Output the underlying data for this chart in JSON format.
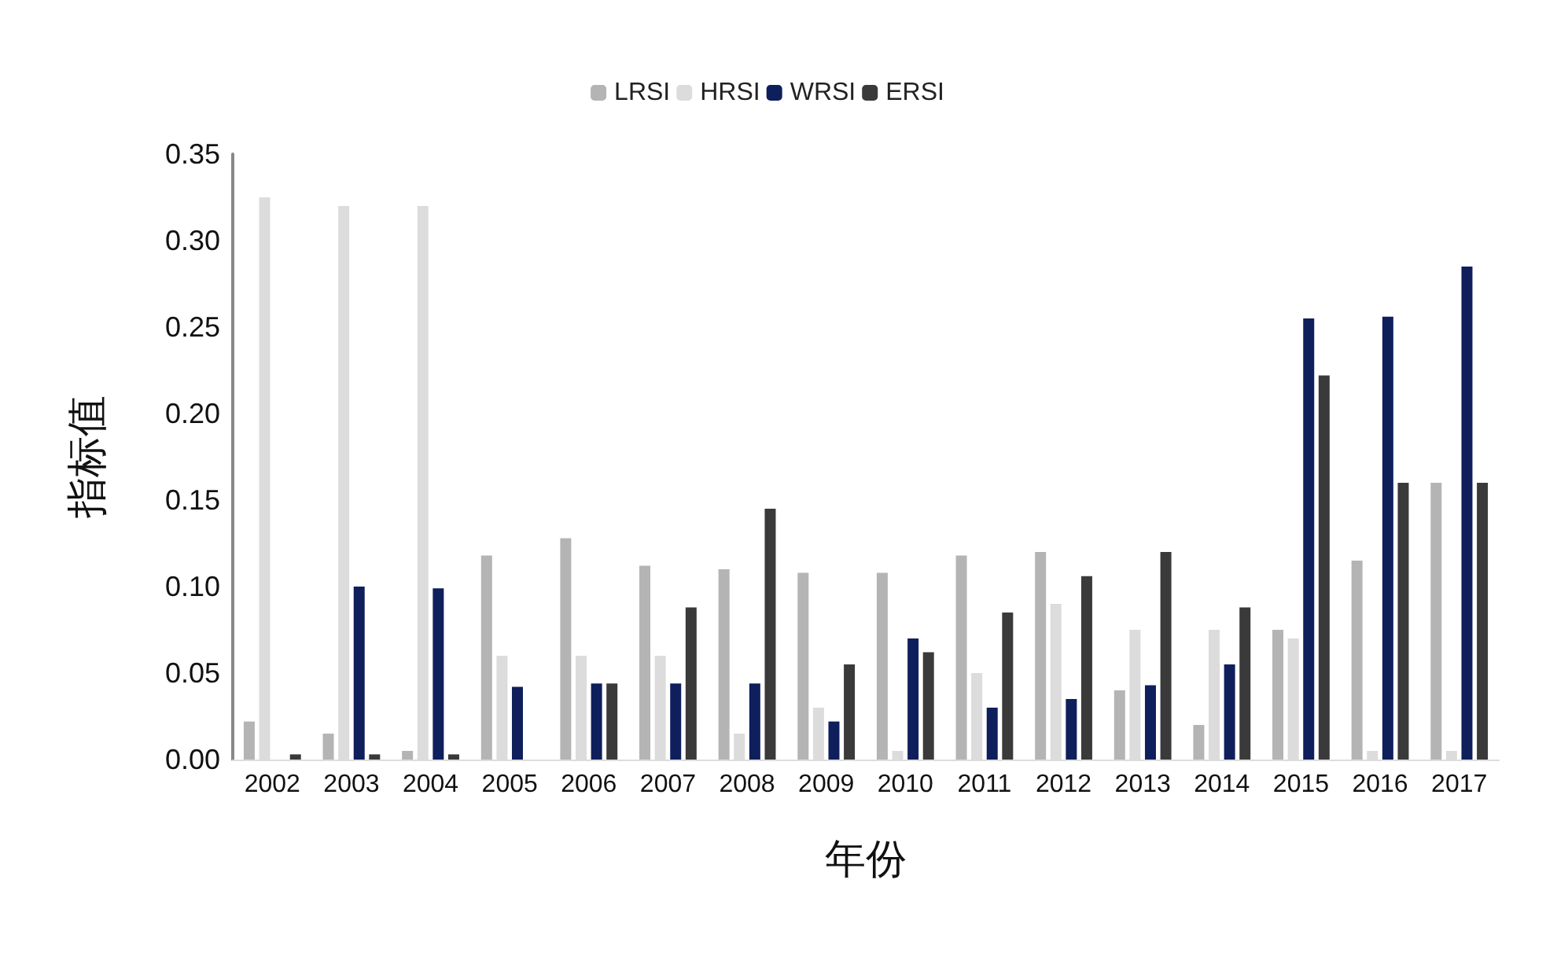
{
  "chart_data": {
    "type": "bar",
    "xlabel": "年份",
    "ylabel": "指标值",
    "categories": [
      "2002",
      "2003",
      "2004",
      "2005",
      "2006",
      "2007",
      "2008",
      "2009",
      "2010",
      "2011",
      "2012",
      "2013",
      "2014",
      "2015",
      "2016",
      "2017"
    ],
    "series": [
      {
        "name": "LRSI",
        "color": "#b4b4b4",
        "values": [
          0.022,
          0.015,
          0.005,
          0.118,
          0.128,
          0.112,
          0.11,
          0.108,
          0.108,
          0.118,
          0.12,
          0.04,
          0.02,
          0.075,
          0.115,
          0.16
        ]
      },
      {
        "name": "HRSI",
        "color": "#dcdcdc",
        "values": [
          0.325,
          0.32,
          0.32,
          0.06,
          0.06,
          0.06,
          0.015,
          0.03,
          0.005,
          0.05,
          0.09,
          0.075,
          0.075,
          0.07,
          0.005,
          0.005
        ]
      },
      {
        "name": "WRSI",
        "color": "#0f1f5c",
        "values": [
          0,
          0.1,
          0.099,
          0.042,
          0.044,
          0.044,
          0.044,
          0.022,
          0.07,
          0.03,
          0.035,
          0.043,
          0.055,
          0.255,
          0.256,
          0.285
        ]
      },
      {
        "name": "ERSI",
        "color": "#3a3a3a",
        "values": [
          0.003,
          0.003,
          0.003,
          0,
          0.044,
          0.088,
          0.145,
          0.055,
          0.062,
          0.085,
          0.106,
          0.12,
          0.088,
          0.222,
          0.16,
          0.16
        ]
      }
    ],
    "ylim": [
      0,
      0.35
    ],
    "yticks": [
      {
        "value": 0,
        "label": "0.00"
      },
      0.05,
      {
        "value": 0.1,
        "label": "0.10"
      },
      0.15,
      {
        "value": 0.2,
        "label": "0.20"
      },
      0.25,
      {
        "value": 0.3,
        "label": "0.30"
      },
      0.35
    ],
    "grid": false,
    "legend": "top"
  }
}
